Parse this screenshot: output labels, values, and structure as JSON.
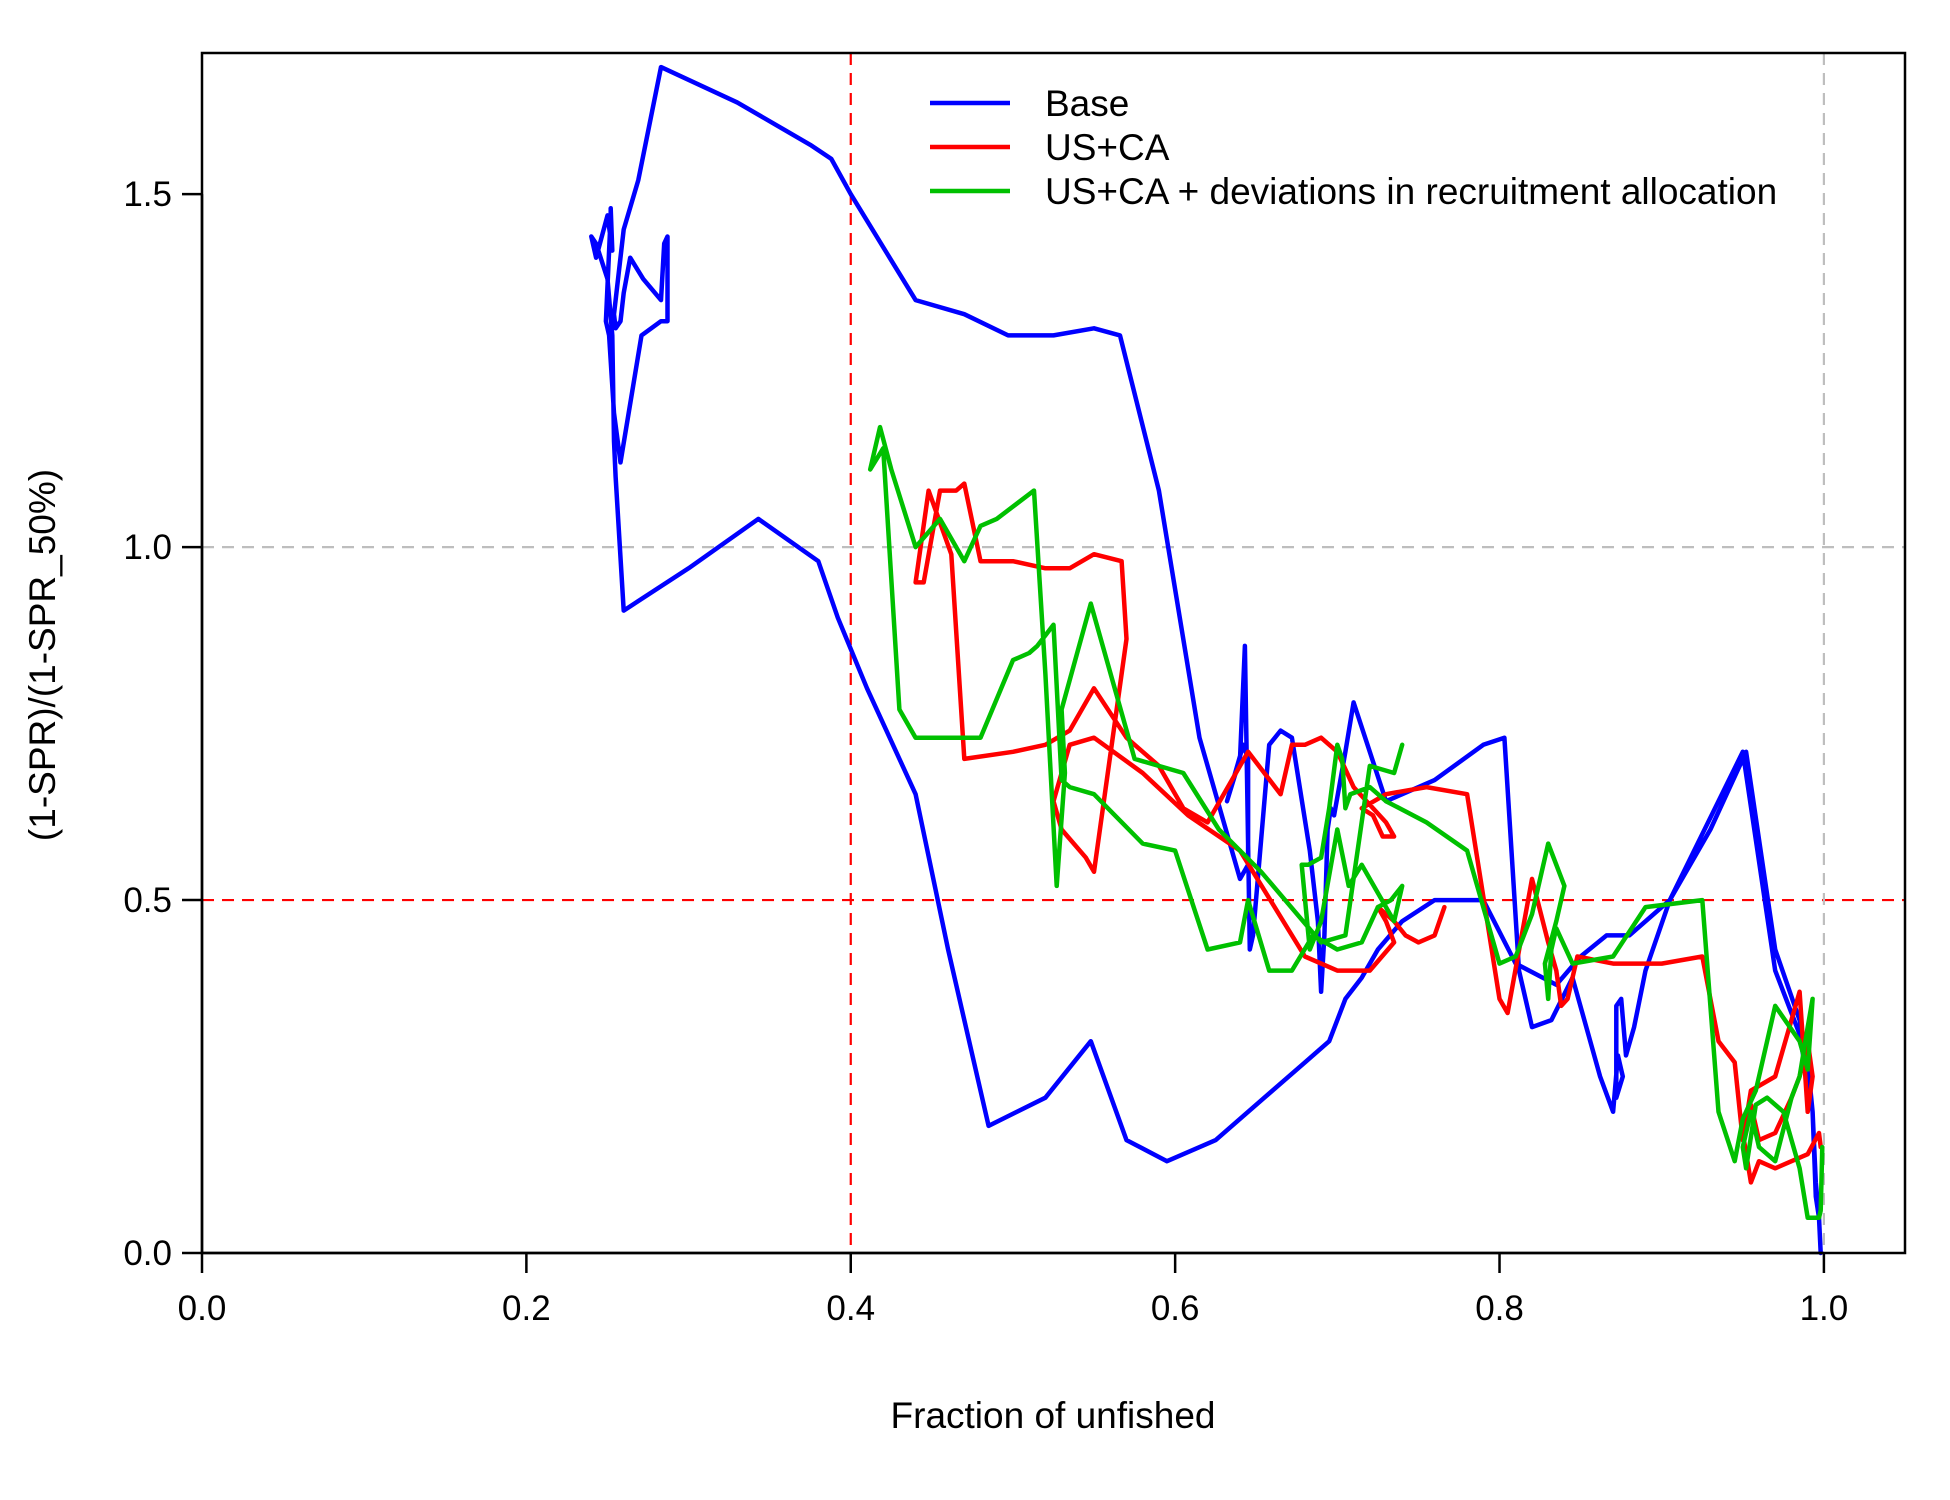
{
  "chart_data": {
    "type": "line",
    "title": "",
    "xlabel": "Fraction of unfished",
    "ylabel": "(1-SPR)/(1-SPR_50%)",
    "xlim": [
      0,
      1.05
    ],
    "ylim": [
      0,
      1.7
    ],
    "x_ticks": [
      0.0,
      0.2,
      0.4,
      0.6,
      0.8,
      1.0
    ],
    "x_tick_labels": [
      "0.0",
      "0.2",
      "0.4",
      "0.6",
      "0.8",
      "1.0"
    ],
    "y_ticks": [
      0.0,
      0.5,
      1.0,
      1.5
    ],
    "y_tick_labels": [
      "0.0",
      "0.5",
      "1.0",
      "1.5"
    ],
    "grid": false,
    "legend_position": "top-right",
    "reference_lines": [
      {
        "orientation": "vertical",
        "value": 0.4,
        "color": "#ff0000",
        "style": "dashed"
      },
      {
        "orientation": "horizontal",
        "value": 0.5,
        "color": "#ff0000",
        "style": "dashed"
      },
      {
        "orientation": "vertical",
        "value": 1.0,
        "color": "#bebebe",
        "style": "dashed"
      },
      {
        "orientation": "horizontal",
        "value": 1.0,
        "color": "#bebebe",
        "style": "dashed"
      }
    ],
    "series": [
      {
        "name": "Base",
        "color": "#0000ff",
        "x": [
          0.998,
          0.997,
          0.995,
          0.993,
          0.99,
          0.985,
          0.97,
          0.952,
          0.93,
          0.905,
          0.89,
          0.883,
          0.878,
          0.875,
          0.872,
          0.872,
          0.876,
          0.873,
          0.87,
          0.862,
          0.845,
          0.832,
          0.82,
          0.812,
          0.803,
          0.79,
          0.76,
          0.74,
          0.73,
          0.71,
          0.705,
          0.698,
          0.696,
          0.694,
          0.692,
          0.69,
          0.688,
          0.683,
          0.672,
          0.665,
          0.658,
          0.648,
          0.646,
          0.643,
          0.64,
          0.632,
          0.642,
          0.645,
          0.645,
          0.64,
          0.615,
          0.59,
          0.566,
          0.55,
          0.525,
          0.497,
          0.47,
          0.44,
          0.4,
          0.388,
          0.375,
          0.33,
          0.283,
          0.269,
          0.26,
          0.254,
          0.255,
          0.258,
          0.26,
          0.264,
          0.272,
          0.283,
          0.285,
          0.287,
          0.287,
          0.283,
          0.271,
          0.258,
          0.254,
          0.251,
          0.249,
          0.252,
          0.252,
          0.253,
          0.25,
          0.243,
          0.24,
          0.243,
          0.25,
          0.253,
          0.254,
          0.255,
          0.26,
          0.3,
          0.343,
          0.38,
          0.392,
          0.41,
          0.44,
          0.46,
          0.485,
          0.52,
          0.548,
          0.57,
          0.595,
          0.625,
          0.655,
          0.68,
          0.695,
          0.705,
          0.715,
          0.725,
          0.74,
          0.76,
          0.79,
          0.81,
          0.835,
          0.85,
          0.866,
          0.88,
          0.905,
          0.95,
          0.97,
          0.985,
          0.993,
          0.995,
          0.997,
          0.998
        ],
        "y": [
          0.0,
          0.05,
          0.08,
          0.2,
          0.27,
          0.33,
          0.43,
          0.71,
          0.6,
          0.5,
          0.4,
          0.32,
          0.28,
          0.36,
          0.35,
          0.22,
          0.25,
          0.28,
          0.2,
          0.25,
          0.39,
          0.33,
          0.32,
          0.4,
          0.73,
          0.72,
          0.67,
          0.65,
          0.64,
          0.78,
          0.71,
          0.62,
          0.63,
          0.6,
          0.45,
          0.37,
          0.47,
          0.57,
          0.73,
          0.74,
          0.72,
          0.45,
          0.43,
          0.86,
          0.7,
          0.64,
          0.72,
          0.7,
          0.55,
          0.53,
          0.73,
          1.08,
          1.3,
          1.31,
          1.3,
          1.3,
          1.33,
          1.35,
          1.5,
          1.55,
          1.57,
          1.63,
          1.68,
          1.52,
          1.45,
          1.33,
          1.31,
          1.32,
          1.36,
          1.41,
          1.38,
          1.35,
          1.43,
          1.44,
          1.32,
          1.32,
          1.3,
          1.12,
          1.19,
          1.3,
          1.32,
          1.47,
          1.48,
          1.42,
          1.47,
          1.41,
          1.44,
          1.43,
          1.38,
          1.3,
          1.15,
          1.1,
          0.91,
          0.97,
          1.04,
          0.98,
          0.9,
          0.8,
          0.65,
          0.43,
          0.18,
          0.22,
          0.3,
          0.16,
          0.13,
          0.16,
          0.22,
          0.27,
          0.3,
          0.36,
          0.39,
          0.43,
          0.47,
          0.5,
          0.5,
          0.41,
          0.38,
          0.42,
          0.45,
          0.45,
          0.5,
          0.71,
          0.4,
          0.31,
          0.2,
          0.1,
          0.05,
          0.0
        ]
      },
      {
        "name": "US+CA",
        "color": "#ff0000",
        "x": [
          0.998,
          0.997,
          0.99,
          0.98,
          0.97,
          0.96,
          0.955,
          0.95,
          0.955,
          0.96,
          0.97,
          0.98,
          0.985,
          0.99,
          0.993,
          0.99,
          0.985,
          0.97,
          0.955,
          0.95,
          0.945,
          0.935,
          0.925,
          0.9,
          0.87,
          0.848,
          0.842,
          0.838,
          0.835,
          0.83,
          0.82,
          0.805,
          0.8,
          0.78,
          0.755,
          0.73,
          0.715,
          0.722,
          0.728,
          0.735,
          0.73,
          0.71,
          0.7,
          0.69,
          0.68,
          0.672,
          0.665,
          0.645,
          0.62,
          0.605,
          0.59,
          0.57,
          0.55,
          0.535,
          0.52,
          0.5,
          0.47,
          0.462,
          0.448,
          0.44,
          0.445,
          0.455,
          0.465,
          0.47,
          0.48,
          0.5,
          0.52,
          0.535,
          0.55,
          0.567,
          0.57,
          0.55,
          0.545,
          0.53,
          0.525,
          0.535,
          0.55,
          0.58,
          0.608,
          0.64,
          0.68,
          0.7,
          0.72,
          0.735,
          0.735,
          0.73,
          0.725,
          0.735,
          0.742,
          0.75,
          0.76,
          0.766
        ],
        "y": [
          0.15,
          0.17,
          0.14,
          0.13,
          0.12,
          0.13,
          0.1,
          0.17,
          0.21,
          0.16,
          0.17,
          0.22,
          0.25,
          0.3,
          0.25,
          0.2,
          0.37,
          0.25,
          0.23,
          0.16,
          0.27,
          0.3,
          0.42,
          0.41,
          0.41,
          0.42,
          0.36,
          0.35,
          0.4,
          0.44,
          0.53,
          0.34,
          0.36,
          0.65,
          0.66,
          0.65,
          0.63,
          0.62,
          0.59,
          0.59,
          0.61,
          0.66,
          0.71,
          0.73,
          0.72,
          0.72,
          0.65,
          0.71,
          0.61,
          0.63,
          0.69,
          0.73,
          0.8,
          0.74,
          0.72,
          0.71,
          0.7,
          0.99,
          1.08,
          0.95,
          0.95,
          1.08,
          1.08,
          1.09,
          0.98,
          0.98,
          0.97,
          0.97,
          0.99,
          0.98,
          0.87,
          0.54,
          0.56,
          0.6,
          0.64,
          0.72,
          0.73,
          0.68,
          0.62,
          0.57,
          0.42,
          0.4,
          0.4,
          0.44,
          0.44,
          0.47,
          0.49,
          0.47,
          0.45,
          0.44,
          0.45,
          0.49
        ]
      },
      {
        "name": "US+CA + deviations in recruitment allocation",
        "color": "#00c000",
        "x": [
          0.999,
          0.998,
          0.997,
          0.99,
          0.985,
          0.975,
          0.965,
          0.958,
          0.952,
          0.95,
          0.955,
          0.96,
          0.97,
          0.98,
          0.985,
          0.99,
          0.993,
          0.99,
          0.985,
          0.97,
          0.958,
          0.95,
          0.945,
          0.935,
          0.925,
          0.89,
          0.87,
          0.845,
          0.835,
          0.832,
          0.83,
          0.828,
          0.835,
          0.84,
          0.83,
          0.82,
          0.81,
          0.8,
          0.78,
          0.755,
          0.73,
          0.72,
          0.708,
          0.705,
          0.703,
          0.7,
          0.695,
          0.69,
          0.682,
          0.678,
          0.683,
          0.69,
          0.7,
          0.707,
          0.715,
          0.725,
          0.735,
          0.74,
          0.733,
          0.725,
          0.715,
          0.7,
          0.685,
          0.672,
          0.658,
          0.645,
          0.64,
          0.62,
          0.6,
          0.58,
          0.55,
          0.535,
          0.53,
          0.525,
          0.515,
          0.51,
          0.5,
          0.48,
          0.44,
          0.43,
          0.42,
          0.412,
          0.418,
          0.425,
          0.44,
          0.455,
          0.47,
          0.48,
          0.49,
          0.513,
          0.52,
          0.527,
          0.532,
          0.53,
          0.548,
          0.575,
          0.605,
          0.627,
          0.653,
          0.69,
          0.705,
          0.72,
          0.735,
          0.74
        ],
        "y": [
          0.15,
          0.06,
          0.05,
          0.05,
          0.12,
          0.2,
          0.22,
          0.21,
          0.12,
          0.15,
          0.2,
          0.15,
          0.13,
          0.22,
          0.25,
          0.32,
          0.36,
          0.26,
          0.3,
          0.35,
          0.23,
          0.19,
          0.13,
          0.2,
          0.5,
          0.49,
          0.42,
          0.41,
          0.46,
          0.43,
          0.36,
          0.41,
          0.47,
          0.52,
          0.58,
          0.48,
          0.42,
          0.41,
          0.57,
          0.61,
          0.64,
          0.66,
          0.65,
          0.63,
          0.7,
          0.72,
          0.63,
          0.56,
          0.55,
          0.55,
          0.43,
          0.47,
          0.6,
          0.52,
          0.55,
          0.51,
          0.47,
          0.52,
          0.5,
          0.49,
          0.44,
          0.43,
          0.45,
          0.4,
          0.4,
          0.5,
          0.44,
          0.43,
          0.57,
          0.58,
          0.65,
          0.66,
          0.67,
          0.89,
          0.86,
          0.85,
          0.84,
          0.73,
          0.73,
          0.77,
          1.14,
          1.11,
          1.17,
          1.11,
          1.0,
          1.04,
          0.98,
          1.03,
          1.04,
          1.08,
          0.82,
          0.52,
          0.68,
          0.77,
          0.92,
          0.7,
          0.68,
          0.6,
          0.54,
          0.44,
          0.45,
          0.69,
          0.68,
          0.72
        ]
      }
    ]
  }
}
